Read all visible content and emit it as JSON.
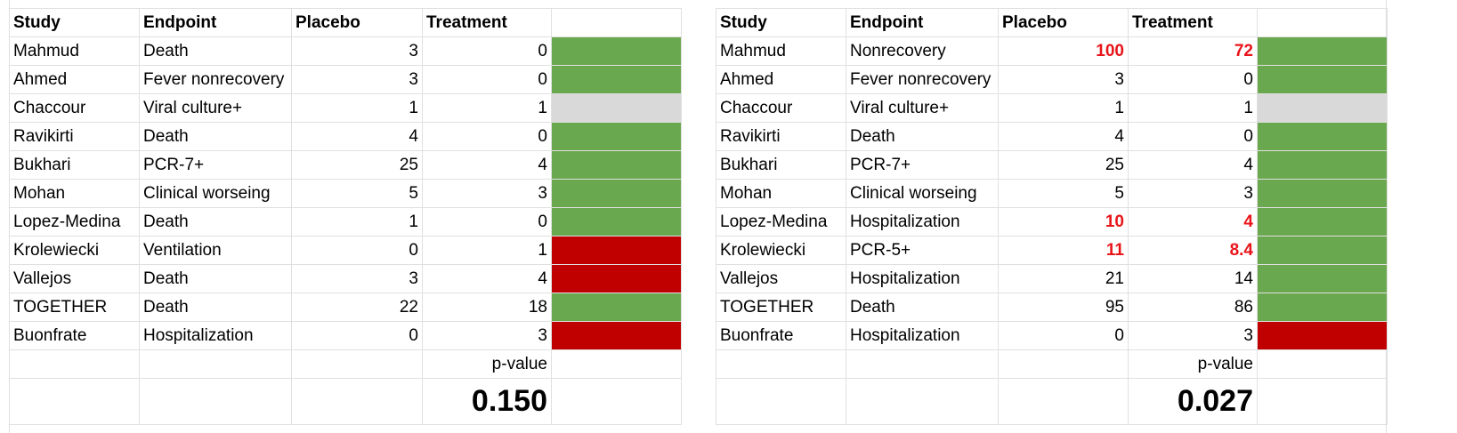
{
  "left": {
    "headers": [
      "Study",
      "Endpoint",
      "Placebo",
      "Treatment"
    ],
    "rows": [
      {
        "study": "Mahmud",
        "endpoint": "Death",
        "placebo": "3",
        "treatment": "0",
        "color": "green",
        "red": false
      },
      {
        "study": "Ahmed",
        "endpoint": "Fever nonrecovery",
        "placebo": "3",
        "treatment": "0",
        "color": "green",
        "red": false
      },
      {
        "study": "Chaccour",
        "endpoint": "Viral culture+",
        "placebo": "1",
        "treatment": "1",
        "color": "gray",
        "red": false
      },
      {
        "study": "Ravikirti",
        "endpoint": "Death",
        "placebo": "4",
        "treatment": "0",
        "color": "green",
        "red": false
      },
      {
        "study": "Bukhari",
        "endpoint": "PCR-7+",
        "placebo": "25",
        "treatment": "4",
        "color": "green",
        "red": false
      },
      {
        "study": "Mohan",
        "endpoint": "Clinical worseing",
        "placebo": "5",
        "treatment": "3",
        "color": "green",
        "red": false
      },
      {
        "study": "Lopez-Medina",
        "endpoint": "Death",
        "placebo": "1",
        "treatment": "0",
        "color": "green",
        "red": false
      },
      {
        "study": "Krolewiecki",
        "endpoint": "Ventilation",
        "placebo": "0",
        "treatment": "1",
        "color": "darkred",
        "red": false
      },
      {
        "study": "Vallejos",
        "endpoint": "Death",
        "placebo": "3",
        "treatment": "4",
        "color": "darkred",
        "red": false
      },
      {
        "study": "TOGETHER",
        "endpoint": "Death",
        "placebo": "22",
        "treatment": "18",
        "color": "green",
        "red": false
      },
      {
        "study": "Buonfrate",
        "endpoint": "Hospitalization",
        "placebo": "0",
        "treatment": "3",
        "color": "darkred",
        "red": false
      }
    ],
    "p_label": "p-value",
    "p_value": "0.150"
  },
  "right": {
    "headers": [
      "Study",
      "Endpoint",
      "Placebo",
      "Treatment"
    ],
    "rows": [
      {
        "study": "Mahmud",
        "endpoint": "Nonrecovery",
        "placebo": "100",
        "treatment": "72",
        "color": "green",
        "red": true
      },
      {
        "study": "Ahmed",
        "endpoint": "Fever nonrecovery",
        "placebo": "3",
        "treatment": "0",
        "color": "green",
        "red": false
      },
      {
        "study": "Chaccour",
        "endpoint": "Viral culture+",
        "placebo": "1",
        "treatment": "1",
        "color": "gray",
        "red": false
      },
      {
        "study": "Ravikirti",
        "endpoint": "Death",
        "placebo": "4",
        "treatment": "0",
        "color": "green",
        "red": false
      },
      {
        "study": "Bukhari",
        "endpoint": "PCR-7+",
        "placebo": "25",
        "treatment": "4",
        "color": "green",
        "red": false
      },
      {
        "study": "Mohan",
        "endpoint": "Clinical worseing",
        "placebo": "5",
        "treatment": "3",
        "color": "green",
        "red": false
      },
      {
        "study": "Lopez-Medina",
        "endpoint": "Hospitalization",
        "placebo": "10",
        "treatment": "4",
        "color": "green",
        "red": true
      },
      {
        "study": "Krolewiecki",
        "endpoint": "PCR-5+",
        "placebo": "11",
        "treatment": "8.4",
        "color": "green",
        "red": true
      },
      {
        "study": "Vallejos",
        "endpoint": "Hospitalization",
        "placebo": "21",
        "treatment": "14",
        "color": "green",
        "red": false
      },
      {
        "study": "TOGETHER",
        "endpoint": "Death",
        "placebo": "95",
        "treatment": "86",
        "color": "green",
        "red": false
      },
      {
        "study": "Buonfrate",
        "endpoint": "Hospitalization",
        "placebo": "0",
        "treatment": "3",
        "color": "darkred",
        "red": false
      }
    ],
    "p_label": "p-value",
    "p_value": "0.027"
  },
  "colors": {
    "green": "#6aa84f",
    "darkred": "#c00000",
    "gray": "#d9d9d9",
    "highlight_text": "#e8141a"
  }
}
